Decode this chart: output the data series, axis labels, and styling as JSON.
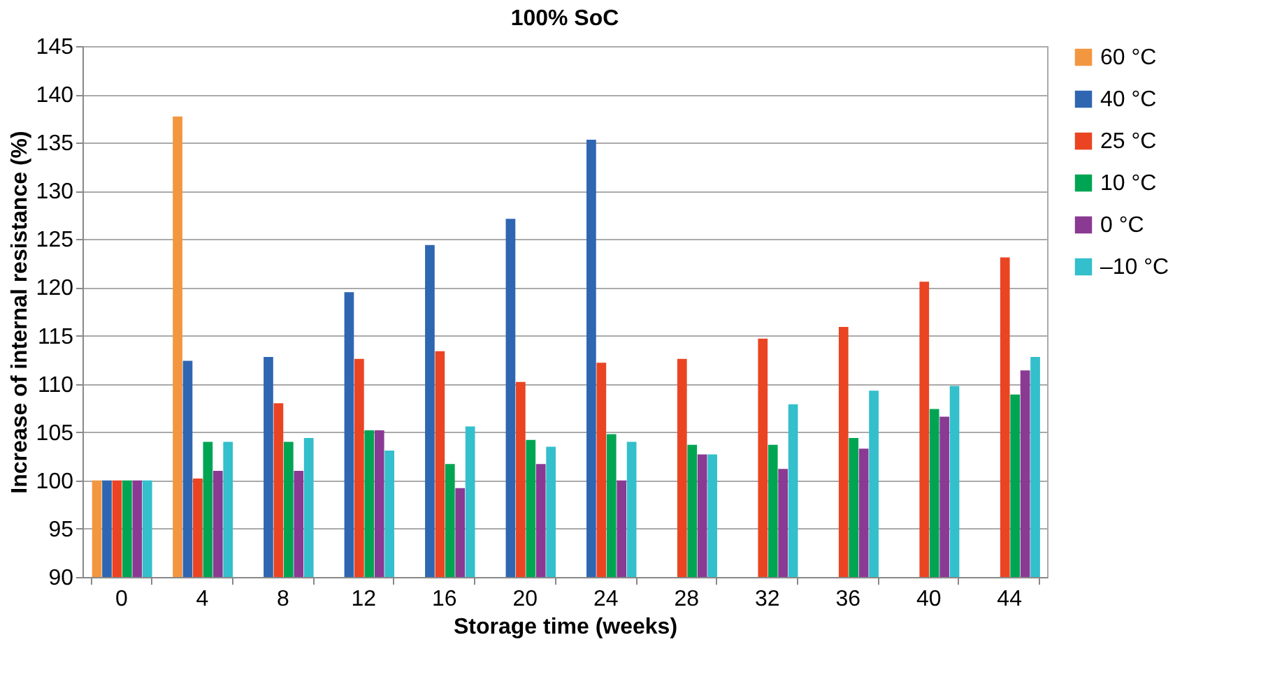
{
  "chart_data": {
    "type": "bar",
    "title": "100% SoC",
    "xlabel": "Storage time (weeks)",
    "ylabel": "Increase of internal resistance (%)",
    "categories": [
      "0",
      "4",
      "8",
      "12",
      "16",
      "20",
      "24",
      "28",
      "32",
      "36",
      "40",
      "44"
    ],
    "series": [
      {
        "name": "60 °C",
        "color": "#f39640",
        "values": [
          100,
          137.7,
          null,
          null,
          null,
          null,
          null,
          null,
          null,
          null,
          null,
          null
        ]
      },
      {
        "name": "40 °C",
        "color": "#2f66b2",
        "values": [
          100,
          112.4,
          112.8,
          119.5,
          124.4,
          127.1,
          135.3,
          null,
          null,
          null,
          null,
          null
        ]
      },
      {
        "name": "25 °C",
        "color": "#ea4423",
        "values": [
          100,
          100.2,
          108,
          112.6,
          113.4,
          110.2,
          112.2,
          112.6,
          114.7,
          115.9,
          120.6,
          123.1
        ]
      },
      {
        "name": "10 °C",
        "color": "#00a553",
        "values": [
          100,
          104,
          104,
          105.2,
          101.7,
          104.2,
          104.8,
          103.7,
          103.7,
          104.4,
          107.4,
          108.9
        ]
      },
      {
        "name": "0 °C",
        "color": "#8a3a93",
        "values": [
          100,
          101,
          101,
          105.2,
          99.2,
          101.7,
          100,
          102.7,
          101.2,
          103.3,
          106.6,
          111.4
        ]
      },
      {
        "name": "–10 °C",
        "color": "#33bfcb",
        "values": [
          100,
          104,
          104.4,
          103.1,
          105.6,
          103.5,
          104,
          102.7,
          107.9,
          109.3,
          109.8,
          112.8
        ]
      }
    ],
    "ylim": [
      90,
      145
    ],
    "yticks": [
      90,
      95,
      100,
      105,
      110,
      115,
      120,
      125,
      130,
      135,
      140,
      145
    ],
    "grid": "y",
    "legend": "right"
  }
}
